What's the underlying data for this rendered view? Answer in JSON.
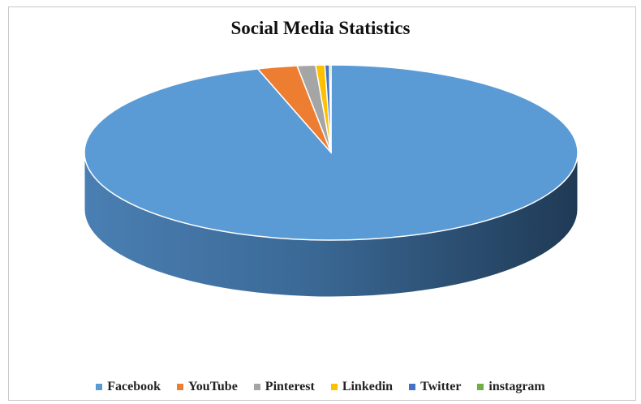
{
  "chart_data": {
    "type": "pie",
    "title": "Social Media Statistics",
    "categories": [
      "Facebook",
      "YouTube",
      "Pinterest",
      "Linkedin",
      "Twitter",
      "instagram"
    ],
    "values": [
      95.2,
      2.6,
      1.2,
      0.6,
      0.3,
      0.1
    ],
    "colors": [
      "#5b9bd5",
      "#ed7d31",
      "#a5a5a5",
      "#ffc000",
      "#4472c4",
      "#70ad47"
    ],
    "legend_position": "bottom",
    "style": "3d-pie"
  }
}
